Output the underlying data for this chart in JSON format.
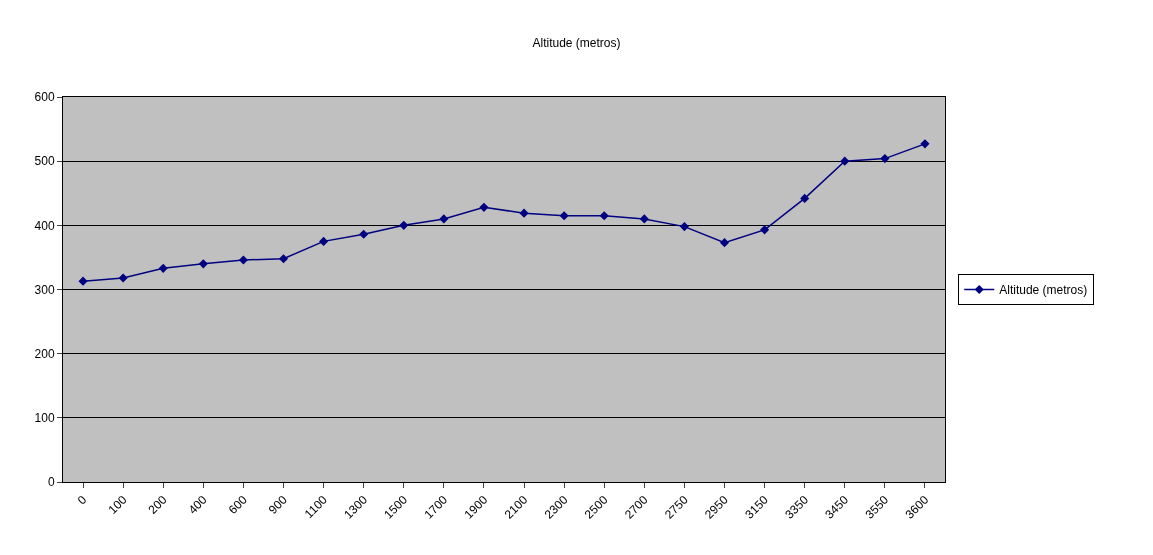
{
  "chart_data": {
    "type": "line",
    "title": "Altitude (metros)",
    "categories": [
      "0",
      "100",
      "200",
      "400",
      "600",
      "900",
      "1100",
      "1300",
      "1500",
      "1700",
      "1900",
      "2100",
      "2300",
      "2500",
      "2700",
      "2750",
      "2950",
      "3150",
      "3350",
      "3450",
      "3550",
      "3600"
    ],
    "series": [
      {
        "name": "Altitude (metros)",
        "color": "#000080",
        "values": [
          313,
          318,
          333,
          340,
          346,
          348,
          375,
          386,
          400,
          410,
          428,
          419,
          415,
          415,
          410,
          398,
          373,
          393,
          442,
          500,
          504,
          527
        ]
      }
    ],
    "ylim": [
      0,
      600
    ],
    "yticks": [
      0,
      100,
      200,
      300,
      400,
      500,
      600
    ],
    "grid": "y",
    "legend": "right",
    "marker": "diamond",
    "line_style": "solid"
  }
}
